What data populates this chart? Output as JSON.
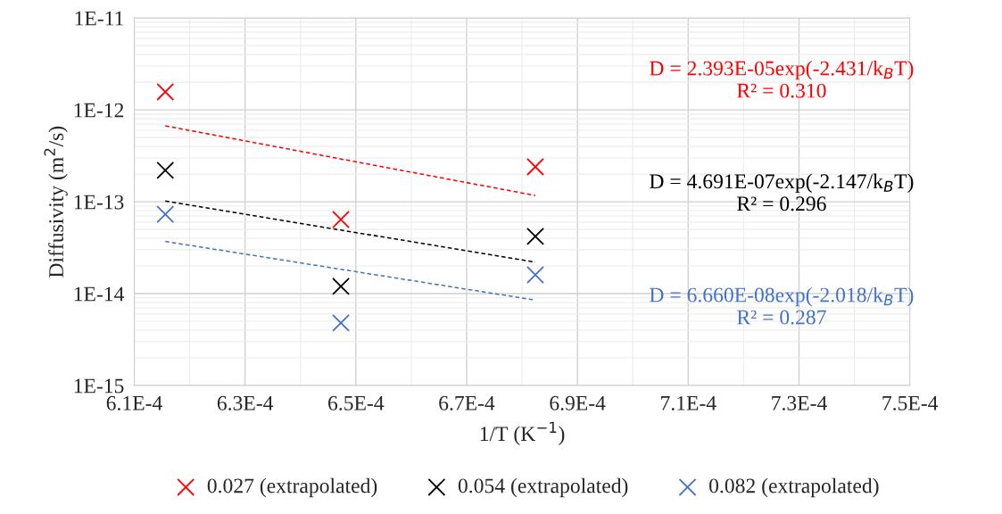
{
  "chart_data": {
    "type": "scatter",
    "xlabel": "1/T (K$^{−1}$)",
    "ylabel": "Diffusivity (m$^{2}$/s)",
    "log": "y",
    "grid": true,
    "legend": "bottom",
    "marker": "cross",
    "xlim": [
      0.00061,
      0.00075
    ],
    "xticks": [
      {
        "value": 0.00061,
        "label": "6.1E-4"
      },
      {
        "value": 0.00063,
        "label": "6.3E-4"
      },
      {
        "value": 0.00065,
        "label": "6.5E-4"
      },
      {
        "value": 0.00067,
        "label": "6.7E-4"
      },
      {
        "value": 0.00069,
        "label": "6.9E-4"
      },
      {
        "value": 0.00071,
        "label": "7.1E-4"
      },
      {
        "value": 0.00073,
        "label": "7.3E-4"
      },
      {
        "value": 0.00075,
        "label": "7.5E-4"
      }
    ],
    "ylim": [
      1e-15,
      1e-11
    ],
    "yticks": [
      {
        "value": 1e-15,
        "label": "1E-15"
      },
      {
        "value": 1e-14,
        "label": "1E-14"
      },
      {
        "value": 1e-13,
        "label": "1E-13"
      },
      {
        "value": 1e-12,
        "label": "1E-12"
      },
      {
        "value": 1e-11,
        "label": "1E-11"
      }
    ],
    "x": [
      0.0006156,
      0.0006473,
      0.0006824
    ],
    "series": [
      {
        "name": "0.027 (extrapolated)",
        "color": "#ff0000",
        "values": [
          1.57e-12,
          6.4e-14,
          2.4e-13
        ]
      },
      {
        "name": "0.054 (extrapolated)",
        "color": "#000000",
        "values": [
          2.2e-13,
          1.2e-14,
          4.2e-14
        ]
      },
      {
        "name": "0.082 (extrapolated)",
        "color": "#4472c4",
        "values": [
          7.3e-14,
          4.8e-15,
          1.6e-14
        ]
      },
      {
        "name": "D = 2.393E-05exp(-2.431/k$_{B}$T)\nR² = 0.310",
        "type": "line",
        "marker": "none",
        "line_style": "dashed",
        "color": "#ff0000",
        "values": [
          6.7e-13,
          2.92e-13,
          1.17e-13
        ]
      },
      {
        "name": "D = 4.691E-07exp(-2.147/k$_{B}$T)\nR² = 0.296",
        "type": "line",
        "marker": "none",
        "line_style": "dashed",
        "color": "#000000",
        "values": [
          1.02e-13,
          4.92e-14,
          2.2e-14
        ]
      },
      {
        "name": "D = 6.660E-08exp(-2.018/k$_{B}$T)\nR² = 0.287",
        "type": "line",
        "marker": "none",
        "line_style": "dashed",
        "color": "#4472c4",
        "values": [
          3.7e-14,
          1.84e-14,
          8.5e-15
        ]
      }
    ]
  }
}
